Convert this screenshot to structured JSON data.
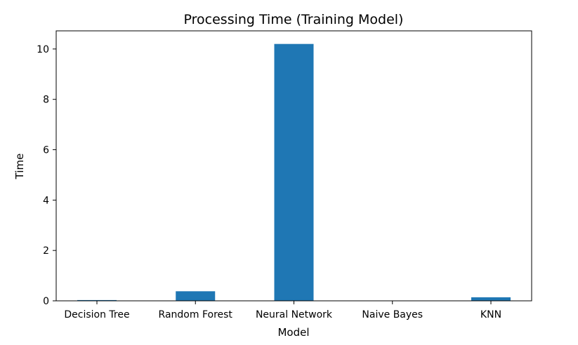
{
  "chart_data": {
    "type": "bar",
    "title": "Processing Time (Training Model)",
    "xlabel": "Model",
    "ylabel": "Time",
    "categories": [
      "Decision Tree",
      "Random Forest",
      "Neural Network",
      "Naive Bayes",
      "KNN"
    ],
    "values": [
      0.03,
      0.38,
      10.2,
      0.01,
      0.14
    ],
    "ylim": [
      0,
      10.72
    ],
    "yticks": [
      "0",
      "2",
      "4",
      "6",
      "8",
      "10"
    ],
    "grid": false,
    "legend": "none",
    "bar_color": "#1f77b4"
  }
}
